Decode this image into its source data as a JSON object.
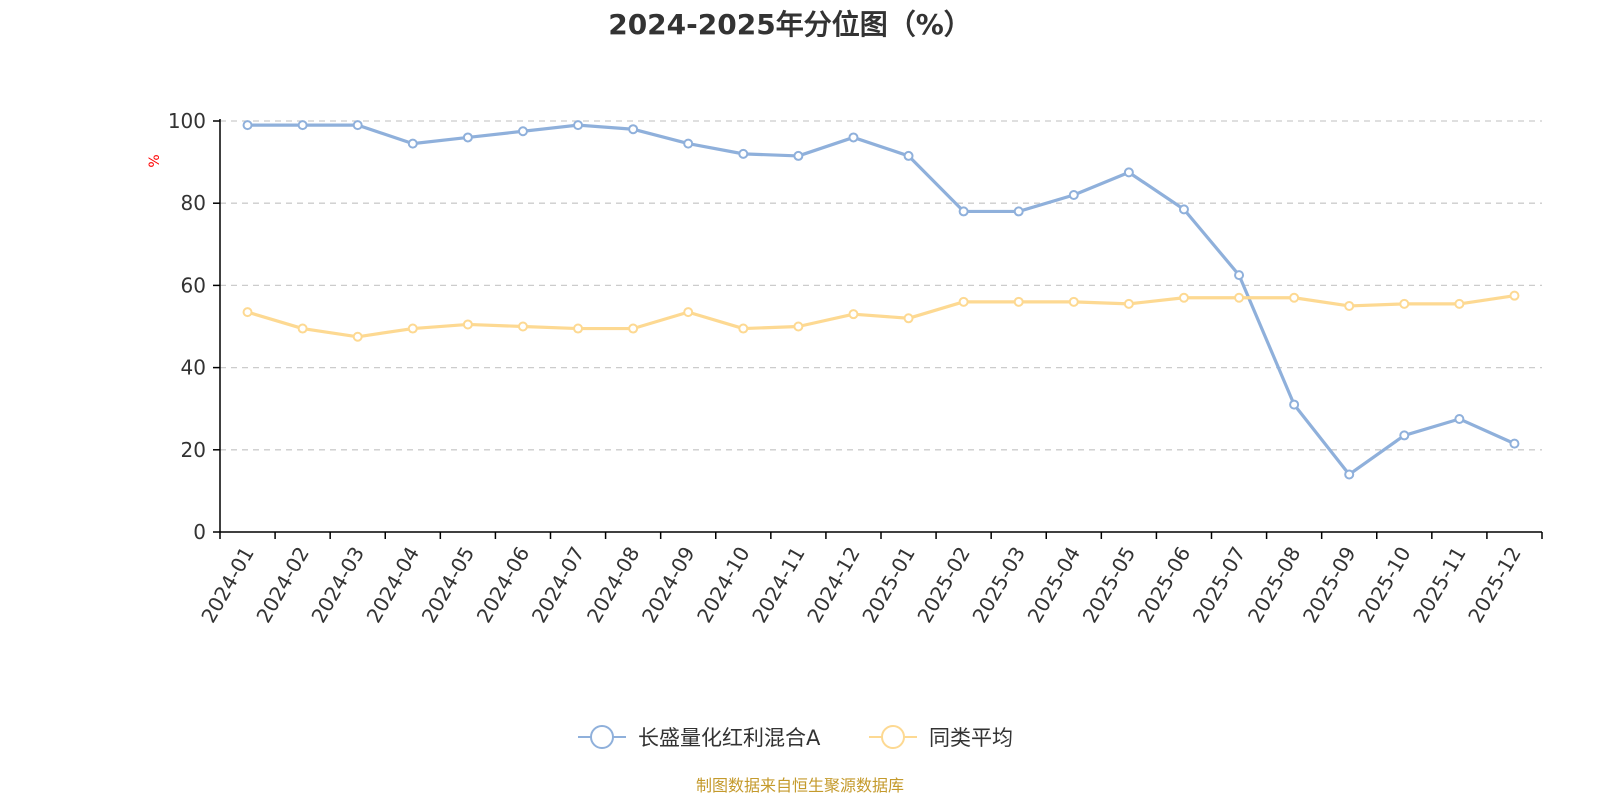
{
  "chart_data": {
    "type": "line",
    "title": "2024-2025年分位图（%）",
    "y_unit": "%",
    "ylim": [
      0,
      100
    ],
    "y_ticks": [
      0,
      20,
      40,
      60,
      80,
      100
    ],
    "grid": "horizontal dashed",
    "legend_position": "bottom-center",
    "categories": [
      "2024-01",
      "2024-02",
      "2024-03",
      "2024-04",
      "2024-05",
      "2024-06",
      "2024-07",
      "2024-08",
      "2024-09",
      "2024-10",
      "2024-11",
      "2024-12",
      "2025-01",
      "2025-02",
      "2025-03",
      "2025-04",
      "2025-05",
      "2025-06",
      "2025-07",
      "2025-08",
      "2025-09",
      "2025-10",
      "2025-11",
      "2025-12"
    ],
    "series": [
      {
        "name": "长盛量化红利混合A",
        "color": "#8fb0db",
        "values": [
          99,
          99,
          99,
          94.5,
          96,
          97.5,
          99,
          98,
          94.5,
          92,
          91.5,
          96,
          91.5,
          78,
          78,
          82,
          87.5,
          78.5,
          62.5,
          31,
          14,
          23.5,
          27.5,
          21.5
        ]
      },
      {
        "name": "同类平均",
        "color": "#fdd992",
        "values": [
          53.5,
          49.5,
          47.5,
          49.5,
          50.5,
          50,
          49.5,
          49.5,
          53.5,
          49.5,
          50,
          53,
          52,
          56,
          56,
          56,
          55.5,
          57,
          57,
          57,
          55,
          55.5,
          55.5,
          57.5
        ]
      }
    ]
  },
  "source_text": "制图数据来自恒生聚源数据库",
  "colors": {
    "axis": "#000000",
    "grid": "#cccccc",
    "text": "#333333",
    "unit": "#ff0000",
    "source": "#c49a2c"
  }
}
